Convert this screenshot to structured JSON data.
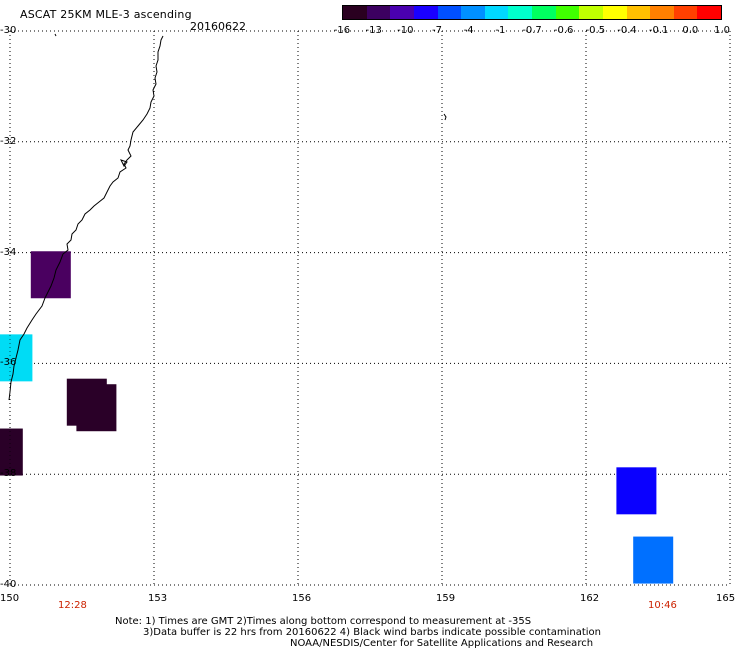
{
  "header": {
    "title": "ASCAT 25KM MLE-3 ascending",
    "date": "20160622"
  },
  "colorbar": {
    "labels": [
      "-16",
      "-13",
      "-10",
      "-7",
      "-4",
      "-1",
      "-0.7",
      "-0.6",
      "-0.5",
      "-0.4",
      "-0.1",
      "0.0",
      "1.0"
    ],
    "colors": [
      "#2a0020",
      "#3c0060",
      "#4a00b0",
      "#1a00ff",
      "#0050ff",
      "#0090ff",
      "#00d8ff",
      "#00ffcc",
      "#00ff60",
      "#40ff00",
      "#c0ff00",
      "#ffff00",
      "#ffc000",
      "#ff8000",
      "#ff4000",
      "#ff0000"
    ]
  },
  "map": {
    "lon_range": [
      150,
      165
    ],
    "lat_range": [
      -30,
      -40
    ],
    "lon_ticks": [
      "150",
      "153",
      "156",
      "159",
      "162",
      "165"
    ],
    "lat_ticks": [
      "-30",
      "-32",
      "-34",
      "-36",
      "-38",
      "-40"
    ],
    "cells": [
      {
        "lon": 150.85,
        "lat": -34.4,
        "color": "#4a0060"
      },
      {
        "lon": 150.05,
        "lat": -35.9,
        "color": "#00dcf5"
      },
      {
        "lon": 151.6,
        "lat": -36.7,
        "color": "#2a0028"
      },
      {
        "lon": 151.8,
        "lat": -36.8,
        "color": "#2a0028"
      },
      {
        "lon": 149.85,
        "lat": -37.6,
        "color": "#2a0028"
      },
      {
        "lon": 163.05,
        "lat": -38.3,
        "color": "#0a00ff"
      },
      {
        "lon": 163.4,
        "lat": -39.55,
        "color": "#0070ff"
      }
    ],
    "time_left": "12:28",
    "time_right": "10:46"
  },
  "notes": {
    "line1": "Note: 1) Times are GMT 2)Times along bottom correspond to measurement at -35S",
    "line2": "3)Data buffer is 22 hrs from 20160622 4) Black wind barbs indicate possible contamination",
    "line3": "NOAA/NESDIS/Center for Satellite Applications and Research"
  }
}
